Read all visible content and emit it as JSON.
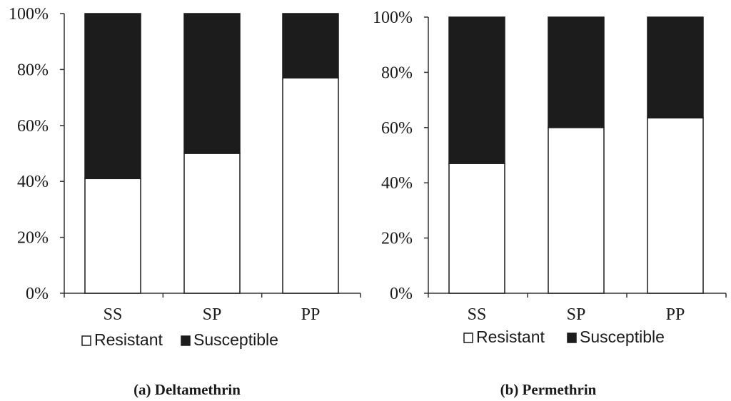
{
  "chart_data": [
    {
      "type": "bar",
      "stacked": true,
      "percent": true,
      "categories": [
        "SS",
        "SP",
        "PP"
      ],
      "series": [
        {
          "name": "Resistant",
          "values": [
            41,
            50,
            77
          ],
          "color": "#ffffff"
        },
        {
          "name": "Susceptible",
          "values": [
            59,
            50,
            23
          ],
          "color": "#1c1c1c"
        }
      ],
      "yticks": [
        "0%",
        "20%",
        "40%",
        "60%",
        "80%",
        "100%"
      ],
      "ylim": [
        0,
        100
      ],
      "title": "(a) Deltamethrin",
      "legend": "bottom",
      "grid": false
    },
    {
      "type": "bar",
      "stacked": true,
      "percent": true,
      "categories": [
        "SS",
        "SP",
        "PP"
      ],
      "series": [
        {
          "name": "Resistant",
          "values": [
            47,
            60,
            63.5
          ],
          "color": "#ffffff"
        },
        {
          "name": "Susceptible",
          "values": [
            53,
            40,
            36.5
          ],
          "color": "#1c1c1c"
        }
      ],
      "yticks": [
        "0%",
        "20%",
        "40%",
        "60%",
        "80%",
        "100%"
      ],
      "ylim": [
        0,
        100
      ],
      "title": "(b) Permethrin",
      "legend": "bottom",
      "grid": false
    }
  ]
}
